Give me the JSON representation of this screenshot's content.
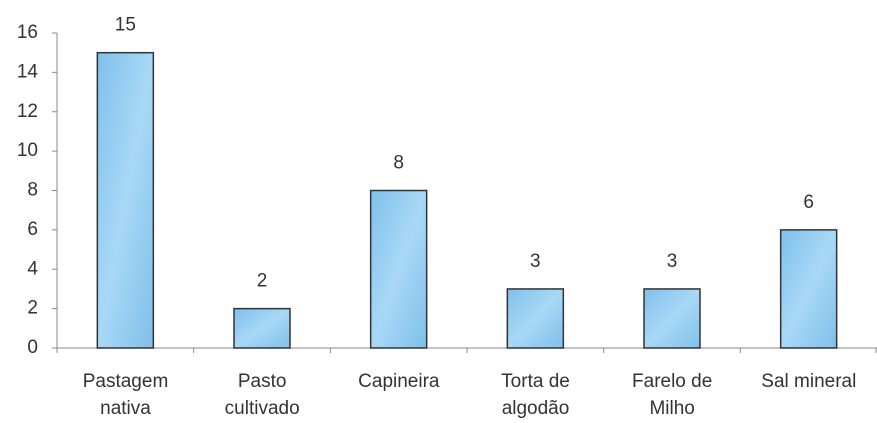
{
  "chart_data": {
    "type": "bar",
    "categories": [
      "Pastagem\nnativa",
      "Pasto\ncultivado",
      "Capineira",
      "Torta de\nalgodão",
      "Farelo de\nMilho",
      "Sal mineral"
    ],
    "values": [
      15,
      2,
      8,
      3,
      3,
      6
    ],
    "color": "#8fcbf0",
    "ylim": [
      0,
      16
    ],
    "yticks": [
      0,
      2,
      4,
      6,
      8,
      10,
      12,
      14,
      16
    ],
    "grid": false
  }
}
